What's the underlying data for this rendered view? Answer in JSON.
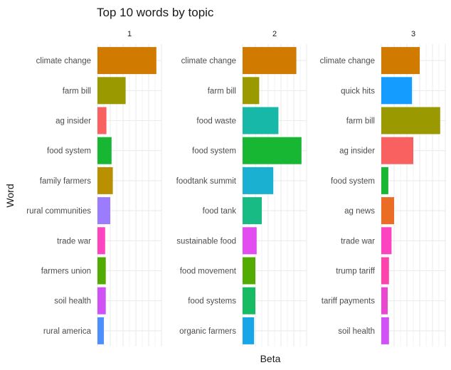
{
  "chart_data": {
    "type": "bar",
    "orientation": "horizontal",
    "title": "Top 10 words by topic",
    "xlabel": "Beta",
    "ylabel": "Word",
    "grid": true,
    "legend": "none",
    "facets": [
      {
        "label": "1",
        "bars": [
          {
            "word": "climate change",
            "value": 0.046,
            "color": "#D17A00"
          },
          {
            "word": "farm bill",
            "value": 0.022,
            "color": "#9A9900"
          },
          {
            "word": "ag insider",
            "value": 0.007,
            "color": "#F8615F"
          },
          {
            "word": "food system",
            "value": 0.011,
            "color": "#17B733"
          },
          {
            "word": "family farmers",
            "value": 0.012,
            "color": "#BB9000"
          },
          {
            "word": "rural communities",
            "value": 0.01,
            "color": "#9B7CFF"
          },
          {
            "word": "trade war",
            "value": 0.006,
            "color": "#FD43C0"
          },
          {
            "word": "farmers union",
            "value": 0.0065,
            "color": "#52AB00"
          },
          {
            "word": "soil health",
            "value": 0.0065,
            "color": "#D051F5"
          },
          {
            "word": "rural america",
            "value": 0.005,
            "color": "#4E8FFF"
          }
        ]
      },
      {
        "label": "2",
        "bars": [
          {
            "word": "climate change",
            "value": 0.042,
            "color": "#D17A00"
          },
          {
            "word": "farm bill",
            "value": 0.013,
            "color": "#9A9900"
          },
          {
            "word": "food waste",
            "value": 0.028,
            "color": "#18B8A8"
          },
          {
            "word": "food system",
            "value": 0.046,
            "color": "#17B733"
          },
          {
            "word": "foodtank summit",
            "value": 0.024,
            "color": "#19B0D2"
          },
          {
            "word": "food tank",
            "value": 0.015,
            "color": "#17BB83"
          },
          {
            "word": "sustainable food",
            "value": 0.011,
            "color": "#E34CF0"
          },
          {
            "word": "food movement",
            "value": 0.01,
            "color": "#52AB00"
          },
          {
            "word": "food systems",
            "value": 0.01,
            "color": "#17BB63"
          },
          {
            "word": "organic farmers",
            "value": 0.009,
            "color": "#19A6E8"
          }
        ]
      },
      {
        "label": "3",
        "bars": [
          {
            "word": "climate change",
            "value": 0.03,
            "color": "#D17A00"
          },
          {
            "word": "quick hits",
            "value": 0.024,
            "color": "#149CFF"
          },
          {
            "word": "farm bill",
            "value": 0.046,
            "color": "#9A9900"
          },
          {
            "word": "ag insider",
            "value": 0.025,
            "color": "#F8615F"
          },
          {
            "word": "food system",
            "value": 0.0055,
            "color": "#17B733"
          },
          {
            "word": "ag news",
            "value": 0.01,
            "color": "#EA6C25"
          },
          {
            "word": "trade war",
            "value": 0.008,
            "color": "#FD43C0"
          },
          {
            "word": "trump tariff",
            "value": 0.006,
            "color": "#FD43AE"
          },
          {
            "word": "tariff payments",
            "value": 0.005,
            "color": "#EA47D0"
          },
          {
            "word": "soil health",
            "value": 0.006,
            "color": "#D051F5"
          }
        ]
      }
    ],
    "xlim": [
      0,
      0.05
    ],
    "colors": {
      "grid": "#ebebeb",
      "text": "#4d4d4d",
      "title": "#1a1a1a"
    }
  }
}
